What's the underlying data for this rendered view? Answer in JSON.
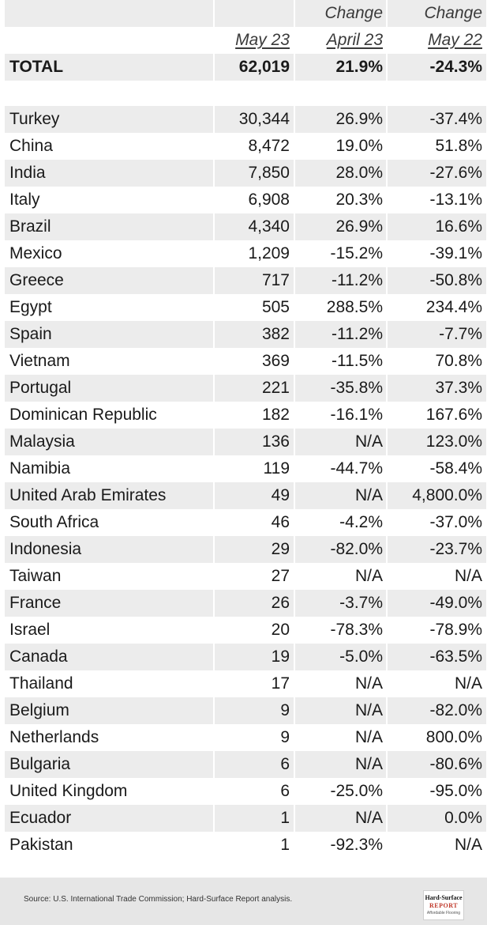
{
  "header": {
    "row1": [
      "",
      "",
      "Change",
      "Change"
    ],
    "row2": [
      "",
      "May 23",
      "April 23",
      "May 22"
    ]
  },
  "total": {
    "label": "TOTAL",
    "value": "62,019",
    "change_month": "21.9%",
    "change_year": "-24.3%"
  },
  "rows": [
    {
      "country": "Turkey",
      "value": "30,344",
      "change_month": "26.9%",
      "change_year": "-37.4%"
    },
    {
      "country": "China",
      "value": "8,472",
      "change_month": "19.0%",
      "change_year": "51.8%"
    },
    {
      "country": "India",
      "value": "7,850",
      "change_month": "28.0%",
      "change_year": "-27.6%"
    },
    {
      "country": "Italy",
      "value": "6,908",
      "change_month": "20.3%",
      "change_year": "-13.1%"
    },
    {
      "country": "Brazil",
      "value": "4,340",
      "change_month": "26.9%",
      "change_year": "16.6%"
    },
    {
      "country": "Mexico",
      "value": "1,209",
      "change_month": "-15.2%",
      "change_year": "-39.1%"
    },
    {
      "country": "Greece",
      "value": "717",
      "change_month": "-11.2%",
      "change_year": "-50.8%"
    },
    {
      "country": "Egypt",
      "value": "505",
      "change_month": "288.5%",
      "change_year": "234.4%"
    },
    {
      "country": "Spain",
      "value": "382",
      "change_month": "-11.2%",
      "change_year": "-7.7%"
    },
    {
      "country": "Vietnam",
      "value": "369",
      "change_month": "-11.5%",
      "change_year": "70.8%"
    },
    {
      "country": "Portugal",
      "value": "221",
      "change_month": "-35.8%",
      "change_year": "37.3%"
    },
    {
      "country": "Dominican Republic",
      "value": "182",
      "change_month": "-16.1%",
      "change_year": "167.6%"
    },
    {
      "country": "Malaysia",
      "value": "136",
      "change_month": "N/A",
      "change_year": "123.0%"
    },
    {
      "country": "Namibia",
      "value": "119",
      "change_month": "-44.7%",
      "change_year": "-58.4%"
    },
    {
      "country": "United Arab Emirates",
      "value": "49",
      "change_month": "N/A",
      "change_year": "4,800.0%"
    },
    {
      "country": "South Africa",
      "value": "46",
      "change_month": "-4.2%",
      "change_year": "-37.0%"
    },
    {
      "country": "Indonesia",
      "value": "29",
      "change_month": "-82.0%",
      "change_year": "-23.7%"
    },
    {
      "country": "Taiwan",
      "value": "27",
      "change_month": "N/A",
      "change_year": "N/A"
    },
    {
      "country": "France",
      "value": "26",
      "change_month": "-3.7%",
      "change_year": "-49.0%"
    },
    {
      "country": "Israel",
      "value": "20",
      "change_month": "-78.3%",
      "change_year": "-78.9%"
    },
    {
      "country": "Canada",
      "value": "19",
      "change_month": "-5.0%",
      "change_year": "-63.5%"
    },
    {
      "country": "Thailand",
      "value": "17",
      "change_month": "N/A",
      "change_year": "N/A"
    },
    {
      "country": "Belgium",
      "value": "9",
      "change_month": "N/A",
      "change_year": "-82.0%"
    },
    {
      "country": "Netherlands",
      "value": "9",
      "change_month": "N/A",
      "change_year": "800.0%"
    },
    {
      "country": "Bulgaria",
      "value": "6",
      "change_month": "N/A",
      "change_year": "-80.6%"
    },
    {
      "country": "United Kingdom",
      "value": "6",
      "change_month": "-25.0%",
      "change_year": "-95.0%"
    },
    {
      "country": "Ecuador",
      "value": "1",
      "change_month": "N/A",
      "change_year": "0.0%"
    },
    {
      "country": "Pakistan",
      "value": "1",
      "change_month": "-92.3%",
      "change_year": "N/A"
    }
  ],
  "footer": {
    "source": "Source: U.S. International Trade Commission; Hard-Surface Report analysis.",
    "logo_line1": "Hard-Surface",
    "logo_line2": "REPORT",
    "logo_line3": "Affordable Flooring"
  }
}
